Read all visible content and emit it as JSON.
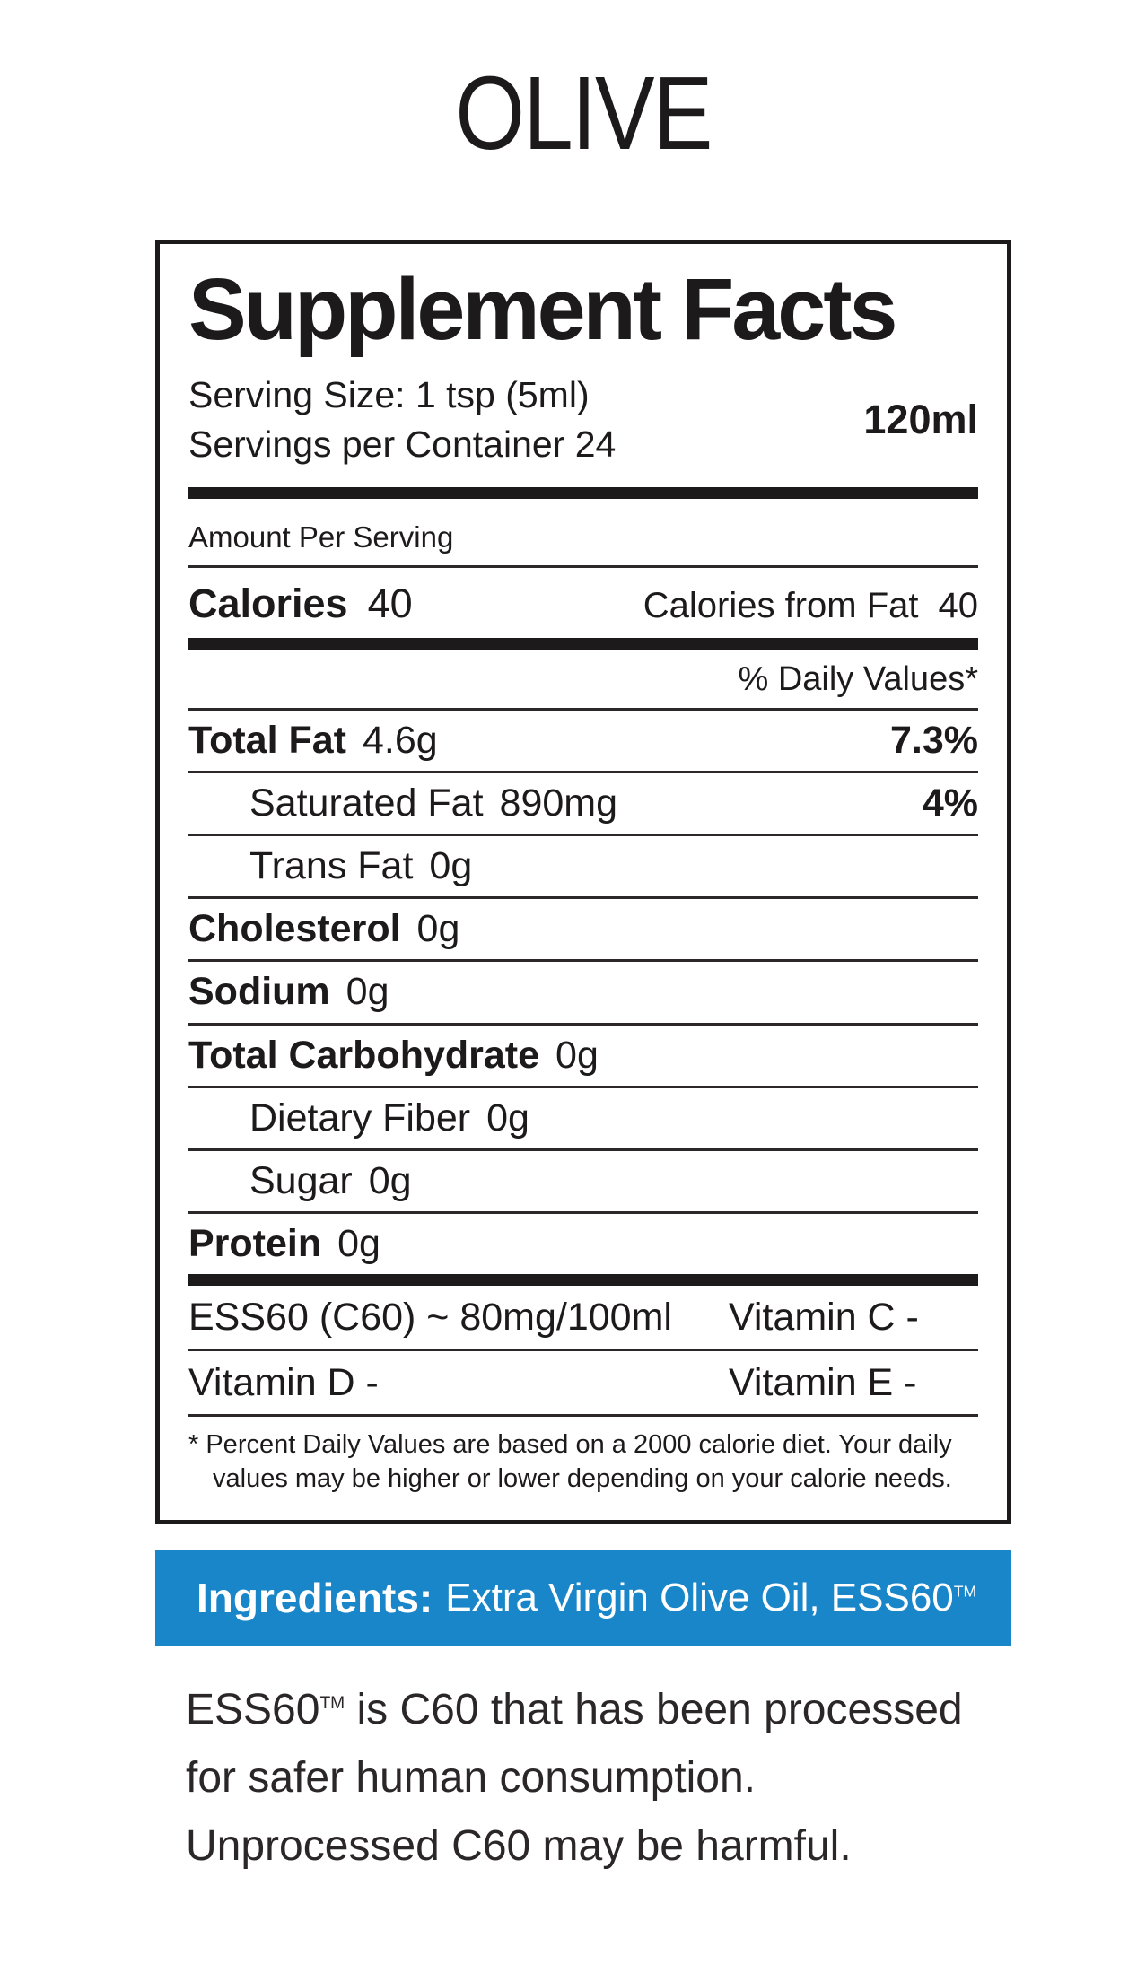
{
  "product_title": "OLIVE",
  "panel": {
    "title": "Supplement Facts",
    "serving_size": "Serving Size: 1 tsp (5ml)",
    "servings_per_container": "Servings per Container 24",
    "volume": "120ml",
    "amount_per_serving": "Amount Per Serving",
    "calories": {
      "label": "Calories",
      "value": "40"
    },
    "calories_from_fat": {
      "label": "Calories from Fat",
      "value": "40"
    },
    "daily_values_header": "% Daily Values*",
    "nutrients": [
      {
        "label": "Total Fat",
        "value": "4.6g",
        "dv": "7.3%"
      },
      {
        "label": "Saturated Fat",
        "value": "890mg",
        "dv": "4%"
      },
      {
        "label": "Trans Fat",
        "value": "0g",
        "dv": ""
      },
      {
        "label": "Cholesterol",
        "value": "0g",
        "dv": ""
      },
      {
        "label": "Sodium",
        "value": "0g",
        "dv": ""
      },
      {
        "label": "Total Carbohydrate",
        "value": "0g",
        "dv": ""
      },
      {
        "label": "Dietary Fiber",
        "value": "0g",
        "dv": ""
      },
      {
        "label": "Sugar",
        "value": "0g",
        "dv": ""
      },
      {
        "label": "Protein",
        "value": "0g",
        "dv": ""
      }
    ],
    "extra_rows": [
      {
        "col1": "ESS60 (C60) ~ 80mg/100ml",
        "col2": "Vitamin C -"
      },
      {
        "col1": "Vitamin D -",
        "col2": "Vitamin E -"
      }
    ],
    "footnote_lines": [
      "* Percent Daily Values are based on a 2000 calorie diet. Your daily",
      "values may be higher or lower depending on your calorie needs."
    ]
  },
  "ingredients": {
    "label": "Ingredients:",
    "text": "Extra Virgin Olive Oil, ESS60",
    "tm": "TM"
  },
  "description": {
    "brand": "ESS60",
    "tm": "TM",
    "line1_rest": " is C60 that has been processed",
    "line2": "for safer human consumption.",
    "line3": "Unprocessed C60 may be harmful."
  },
  "colors": {
    "accent_blue": "#1986c9",
    "text_black": "#1d1a1b"
  }
}
